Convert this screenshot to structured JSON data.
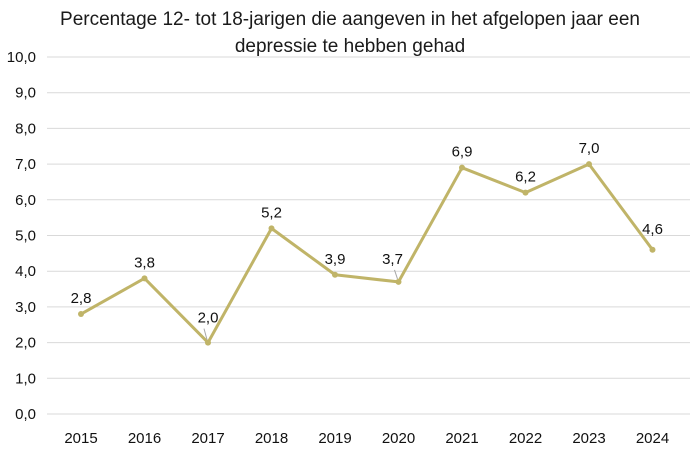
{
  "chart_data": {
    "type": "line",
    "title_lines": [
      "Percentage 12- tot 18-jarigen die aangeven in het afgelopen jaar een",
      "depressie te hebben gehad"
    ],
    "categories": [
      "2015",
      "2016",
      "2017",
      "2018",
      "2019",
      "2020",
      "2021",
      "2022",
      "2023",
      "2024"
    ],
    "series": [
      {
        "name": "Percentage",
        "values": [
          2.8,
          3.8,
          2.0,
          5.2,
          3.9,
          3.7,
          6.9,
          6.2,
          7.0,
          4.6
        ],
        "labels": [
          "2,8",
          "3,8",
          "2,0",
          "5,2",
          "3,9",
          "3,7",
          "6,9",
          "6,2",
          "7,0",
          "4,6"
        ],
        "color": "#c0b468"
      }
    ],
    "y_ticks": [
      "0,0",
      "1,0",
      "2,0",
      "3,0",
      "4,0",
      "5,0",
      "6,0",
      "7,0",
      "8,0",
      "9,0",
      "10,0"
    ],
    "ylim": [
      0,
      10
    ],
    "grid": true,
    "gridline_color": "#d9d9d9",
    "xlabel": "",
    "ylabel": ""
  }
}
